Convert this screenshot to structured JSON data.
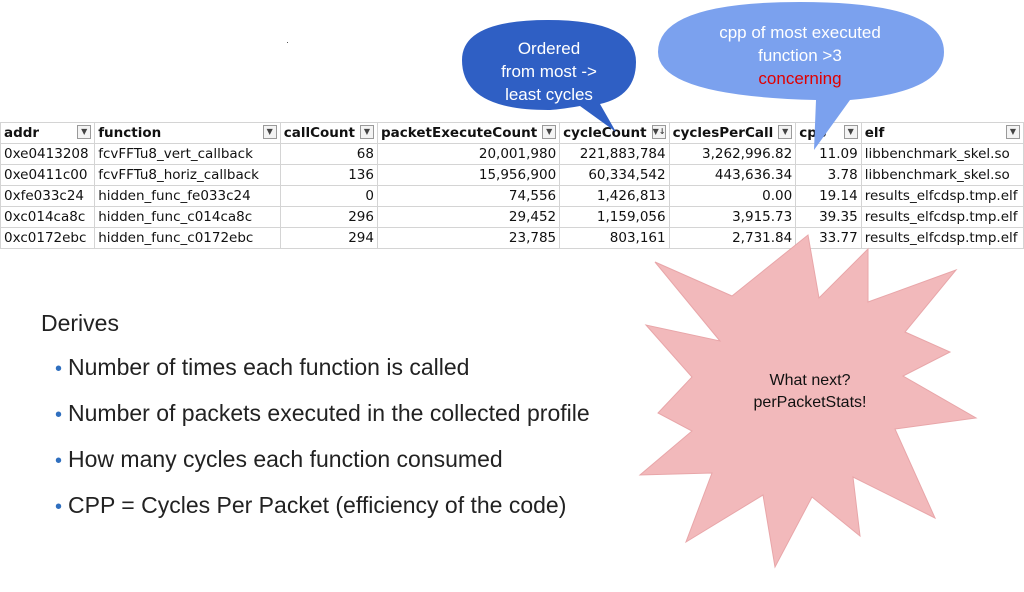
{
  "table": {
    "headers": [
      "addr",
      "function",
      "callCount",
      "packetExecuteCount",
      "cycleCount",
      "cyclesPerCall",
      "cpp",
      "elf"
    ],
    "rows": [
      [
        "0xe0413208",
        "fcvFFTu8_vert_callback",
        "68",
        "20,001,980",
        "221,883,784",
        "3,262,996.82",
        "11.09",
        "libbenchmark_skel.so"
      ],
      [
        "0xe0411c00",
        "fcvFFTu8_horiz_callback",
        "136",
        "15,956,900",
        "60,334,542",
        "443,636.34",
        "3.78",
        "libbenchmark_skel.so"
      ],
      [
        "0xfe033c24",
        "hidden_func_fe033c24",
        "0",
        "74,556",
        "1,426,813",
        "0.00",
        "19.14",
        "results_elfcdsp.tmp.elf"
      ],
      [
        "0xc014ca8c",
        "hidden_func_c014ca8c",
        "296",
        "29,452",
        "1,159,056",
        "3,915.73",
        "39.35",
        "results_elfcdsp.tmp.elf"
      ],
      [
        "0xc0172ebc",
        "hidden_func_c0172ebc",
        "294",
        "23,785",
        "803,161",
        "2,731.84",
        "33.77",
        "results_elfcdsp.tmp.elf"
      ]
    ]
  },
  "callouts": {
    "ordered": {
      "line1": "Ordered",
      "line2": "from most ->",
      "line3": "least cycles"
    },
    "cpp": {
      "line1": "cpp of most executed",
      "line2": "function >3",
      "line3": "concerning"
    }
  },
  "star": {
    "line1": "What next?",
    "line2": "perPacketStats!"
  },
  "derives": {
    "title": "Derives",
    "bullets": [
      "Number of times each function is called",
      "Number of packets executed in the collected profile",
      "How many cycles each function consumed",
      "CPP = Cycles Per Packet (efficiency of the code)"
    ]
  },
  "colors": {
    "ordered_bubble": "#2f5fc4",
    "cpp_bubble": "#7ba1ee",
    "star_fill": "#f2b9bb",
    "bullet": "#2f6fbf",
    "concern": "#e00000"
  }
}
